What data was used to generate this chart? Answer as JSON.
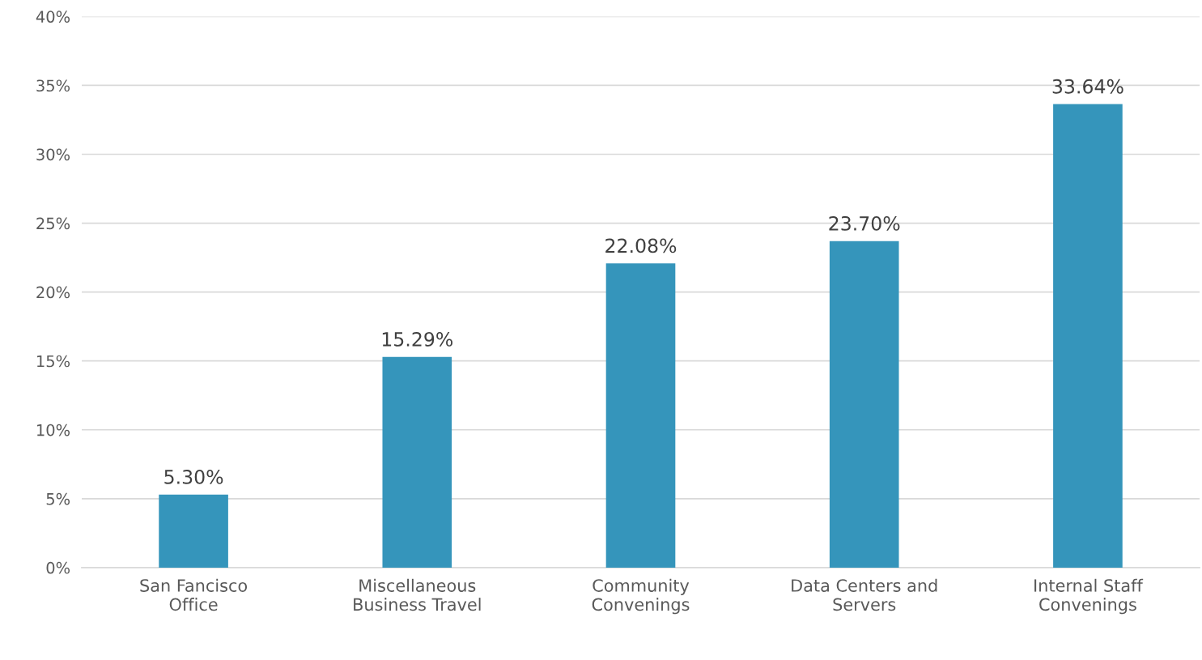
{
  "chart_data": {
    "type": "bar",
    "categories": [
      "San Fancisco\nOffice",
      "Miscellaneous\nBusiness Travel",
      "Community\nConvenings",
      "Data Centers and\nServers",
      "Internal Staff\nConvenings"
    ],
    "values": [
      5.3,
      15.29,
      22.08,
      23.7,
      33.64
    ],
    "value_labels": [
      "5.30%",
      "15.29%",
      "22.08%",
      "23.70%",
      "33.64%"
    ],
    "color": "#3595bb",
    "ylim": [
      0,
      40
    ],
    "yticks": [
      {
        "value": 0,
        "label": "0%"
      },
      {
        "value": 5,
        "label": "5%"
      },
      {
        "value": 10,
        "label": "10%"
      },
      {
        "value": 15,
        "label": "15%"
      },
      {
        "value": 20,
        "label": "20%"
      },
      {
        "value": 25,
        "label": "25%"
      },
      {
        "value": 30,
        "label": "30%"
      },
      {
        "value": 35,
        "label": "35%"
      },
      {
        "value": 40,
        "label": "40%"
      }
    ],
    "grid": "y",
    "legend": false
  }
}
